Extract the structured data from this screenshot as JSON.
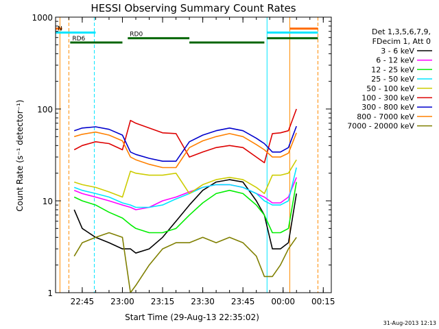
{
  "chart_data": {
    "type": "line",
    "title": "HESSI Observing Summary Count Rates",
    "xlabel": "Start Time (29-Aug-13 22:35:02)",
    "ylabel": "Count Rate (s⁻¹ detector⁻¹)",
    "y_scale": "log",
    "ylim": [
      1,
      1000
    ],
    "y_ticks": [
      1,
      10,
      100,
      1000
    ],
    "y_tick_labels": [
      "1",
      "10",
      "100",
      "1000"
    ],
    "xlim": [
      "22:35:02",
      "00:18:00"
    ],
    "x_ticks": [
      "22:45",
      "23:00",
      "23:15",
      "23:30",
      "23:45",
      "00:00",
      "00:15"
    ],
    "x_tick_labels": [
      "22:45",
      "23:00",
      "23:15",
      "23:30",
      "23:45",
      "00:00",
      "00:15"
    ],
    "legend_header": [
      "Det 1,3,5,6,7,9,",
      "FDecim 1, Att 0"
    ],
    "legend_placement": "right",
    "grid": false,
    "footer_date": "31-Aug-2013 12:13",
    "segments": [
      {
        "label": "",
        "color": "#ff6a00",
        "y": 750,
        "ranges": [
          [
            "22:35:02",
            "22:37:30"
          ],
          [
            "00:02:30",
            "00:13:00"
          ]
        ]
      },
      {
        "label": "N",
        "color": "#00e5ff",
        "y": 680,
        "ranges": [
          [
            "22:35:02",
            "22:50:00"
          ],
          [
            "23:54:00",
            "00:13:00"
          ]
        ]
      },
      {
        "label": "RD0",
        "color": "#006400",
        "y": 590,
        "ranges": [
          [
            "23:02:00",
            "23:25:00"
          ],
          [
            "23:54:00",
            "00:13:00"
          ]
        ]
      },
      {
        "label": "RD6",
        "color": "#006400",
        "y": 530,
        "ranges": [
          [
            "22:40:30",
            "23:00:00"
          ],
          [
            "23:25:00",
            "23:53:00"
          ]
        ]
      }
    ],
    "markers": [
      {
        "t": "22:36:40",
        "color": "#ff8c00",
        "style": "solid"
      },
      {
        "t": "22:40:00",
        "color": "#ff8c00",
        "style": "dashed"
      },
      {
        "t": "22:49:30",
        "color": "#00e5ff",
        "style": "dashed"
      },
      {
        "t": "23:54:00",
        "color": "#00e5ff",
        "style": "solid"
      },
      {
        "t": "00:02:30",
        "color": "#ff8c00",
        "style": "solid"
      },
      {
        "t": "00:13:00",
        "color": "#ff8c00",
        "style": "dashed"
      }
    ],
    "x": [
      "22:35:30",
      "22:40:00",
      "22:42:00",
      "22:45:00",
      "22:50:00",
      "22:55:00",
      "23:00:00",
      "23:03:00",
      "23:05:00",
      "23:10:00",
      "23:15:00",
      "23:20:00",
      "23:25:00",
      "23:30:00",
      "23:35:00",
      "23:40:00",
      "23:45:00",
      "23:50:00",
      "23:53:00",
      "23:56:00",
      "23:59:00",
      "00:02:00",
      "00:05:00"
    ],
    "series": [
      {
        "name": "3 - 6 keV",
        "color": "#000000",
        "values": [
          null,
          null,
          8,
          5,
          4,
          3.5,
          3,
          3,
          2.7,
          3,
          4,
          6,
          9,
          13,
          16,
          17,
          16,
          10,
          7,
          3,
          3,
          3.5,
          12
        ]
      },
      {
        "name": "6 - 12 keV",
        "color": "#ff00ff",
        "values": [
          null,
          null,
          13,
          12,
          11,
          10,
          9,
          8.5,
          8,
          8.5,
          10,
          11,
          12.5,
          14,
          15,
          15,
          14,
          12,
          11,
          9.5,
          9.5,
          11,
          18
        ]
      },
      {
        "name": "12 - 25 keV",
        "color": "#00ee00",
        "values": [
          null,
          null,
          11,
          10,
          9,
          7.5,
          6.5,
          5.5,
          5,
          4.5,
          4.5,
          5,
          7,
          9.5,
          12,
          13,
          12,
          9,
          7,
          4.5,
          4.5,
          5,
          16
        ]
      },
      {
        "name": "25 - 50 keV",
        "color": "#00e5ff",
        "values": [
          null,
          null,
          14,
          13,
          12,
          11,
          9.5,
          9,
          8.5,
          8.5,
          9,
          10.5,
          12,
          14,
          15,
          15,
          14,
          12,
          10,
          9,
          9,
          10,
          23
        ]
      },
      {
        "name": "50 - 100 keV",
        "color": "#cccc00",
        "values": [
          null,
          null,
          16,
          15,
          14,
          12.5,
          11,
          21,
          20,
          19,
          19,
          20,
          12,
          15,
          17,
          18,
          17,
          14,
          12,
          19,
          19,
          20,
          28
        ]
      },
      {
        "name": "100 - 300 keV",
        "color": "#dd0000",
        "values": [
          null,
          null,
          36,
          40,
          44,
          42,
          36,
          75,
          70,
          62,
          55,
          54,
          30,
          34,
          38,
          40,
          38,
          30,
          26,
          54,
          55,
          58,
          100
        ]
      },
      {
        "name": "300 - 800 keV",
        "color": "#0000cc",
        "values": [
          null,
          null,
          58,
          62,
          64,
          60,
          52,
          34,
          32,
          29,
          27,
          27,
          44,
          52,
          58,
          62,
          58,
          48,
          42,
          34,
          34,
          38,
          65
        ]
      },
      {
        "name": "800 - 7000 keV",
        "color": "#ff8000",
        "values": [
          null,
          null,
          50,
          53,
          56,
          52,
          45,
          30,
          28,
          25,
          23,
          23,
          38,
          45,
          50,
          54,
          50,
          41,
          36,
          30,
          30,
          33,
          55
        ]
      },
      {
        "name": "7000 - 20000 keV",
        "color": "#7f7f00",
        "values": [
          null,
          null,
          2.5,
          3.5,
          4,
          4.5,
          4,
          1,
          1.2,
          2,
          3,
          3.5,
          3.5,
          4,
          3.5,
          4,
          3.5,
          2.5,
          1.5,
          1.5,
          2,
          3,
          4
        ]
      }
    ]
  }
}
